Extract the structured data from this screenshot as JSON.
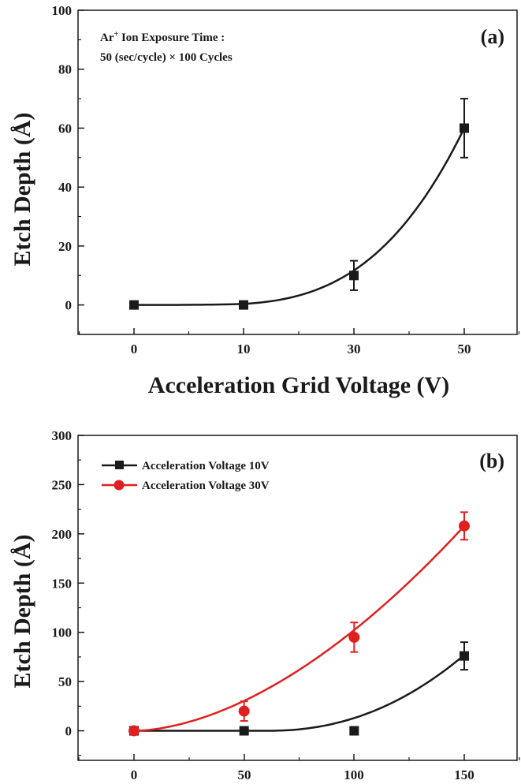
{
  "chart_data": [
    {
      "type": "scatter",
      "panel_label": "(a)",
      "xlabel": "Acceleration Grid Voltage (V)",
      "ylabel": "Etch Depth (Å)",
      "annotation_line1_prefix": "Ar",
      "annotation_line1_sup": "+",
      "annotation_line1_suffix": " Ion Exposure Time :",
      "annotation_line2": "50 (sec/cycle) × 100 Cycles",
      "ylim": [
        -10,
        100
      ],
      "yticks": [
        "0",
        "20",
        "40",
        "60",
        "80",
        "100"
      ],
      "x_tick_labels": [
        "0",
        "10",
        "30",
        "50"
      ],
      "series": [
        {
          "color": "#1a1a1a",
          "marker": "square",
          "points": [
            {
              "x": "0",
              "y": 0,
              "err": 0
            },
            {
              "x": "10",
              "y": 0,
              "err": 0
            },
            {
              "x": "30",
              "y": 10,
              "err": 5
            },
            {
              "x": "50",
              "y": 60,
              "err": 10
            }
          ],
          "fit_curve": [
            [
              0,
              0
            ],
            [
              1,
              0.3
            ],
            [
              2,
              2
            ],
            [
              3,
              17
            ],
            [
              4,
              60
            ]
          ]
        }
      ],
      "grid": false
    },
    {
      "type": "scatter",
      "panel_label": "(b)",
      "ylabel": "Etch Depth (Å)",
      "ylim": [
        -30,
        300
      ],
      "yticks": [
        "0",
        "50",
        "100",
        "150",
        "200",
        "250",
        "300"
      ],
      "x_tick_labels": [
        "0",
        "50",
        "100",
        "150"
      ],
      "legend_position": "top-left",
      "series": [
        {
          "name": "Acceleration Voltage 10V",
          "color": "#1a1a1a",
          "marker": "square",
          "points": [
            {
              "x": 0,
              "y": 0,
              "err": 0
            },
            {
              "x": 50,
              "y": 0,
              "err": 0
            },
            {
              "x": 100,
              "y": 0,
              "err": 0
            },
            {
              "x": 150,
              "y": 76,
              "err": 14
            }
          ],
          "fit_curve": [
            [
              0,
              0
            ],
            [
              50,
              0
            ],
            [
              60,
              0.5
            ],
            [
              75,
              3
            ],
            [
              90,
              8
            ],
            [
              100,
              12
            ],
            [
              115,
              28
            ],
            [
              130,
              46
            ],
            [
              150,
              77
            ]
          ]
        },
        {
          "name": "Acceleration Voltage 30V",
          "color": "#e02020",
          "marker": "circle",
          "points": [
            {
              "x": 0,
              "y": 0,
              "err": 0
            },
            {
              "x": 50,
              "y": 20,
              "err": 10
            },
            {
              "x": 100,
              "y": 95,
              "err": 15
            },
            {
              "x": 150,
              "y": 208,
              "err": 14
            }
          ],
          "fit_curve": [
            [
              0,
              0
            ],
            [
              25,
              8
            ],
            [
              50,
              25
            ],
            [
              75,
              55
            ],
            [
              100,
              95
            ],
            [
              125,
              145
            ],
            [
              150,
              208
            ]
          ]
        }
      ],
      "grid": false
    }
  ]
}
